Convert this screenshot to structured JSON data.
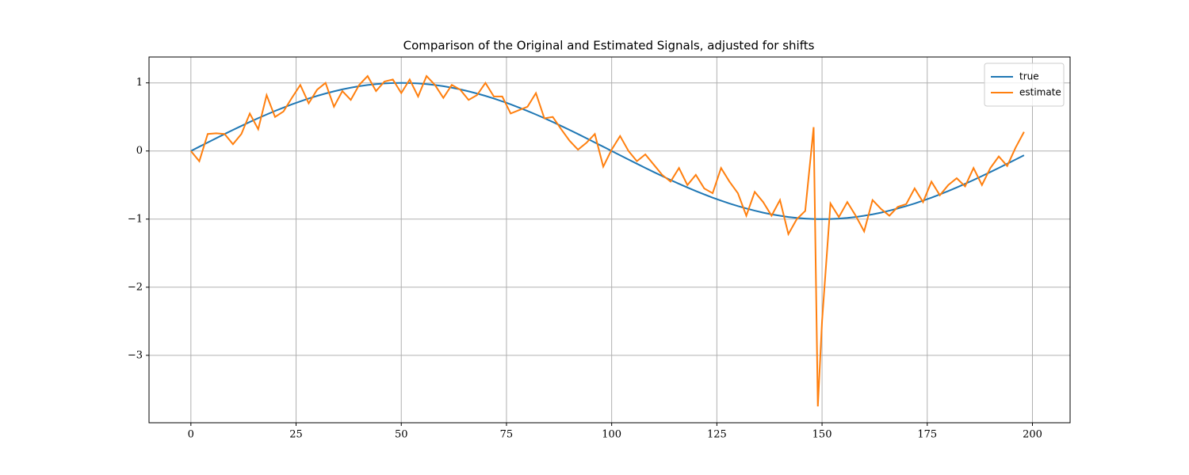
{
  "chart_data": {
    "type": "line",
    "title": "Comparison of the Original and Estimated Signals, adjusted for shifts",
    "x": [
      0,
      2,
      4,
      6,
      8,
      10,
      12,
      14,
      16,
      18,
      20,
      22,
      24,
      26,
      28,
      30,
      32,
      34,
      36,
      38,
      40,
      42,
      44,
      46,
      48,
      50,
      52,
      54,
      56,
      58,
      60,
      62,
      64,
      66,
      68,
      70,
      72,
      74,
      76,
      78,
      80,
      82,
      84,
      86,
      88,
      90,
      92,
      94,
      96,
      98,
      100,
      102,
      104,
      106,
      108,
      110,
      112,
      114,
      116,
      118,
      120,
      122,
      124,
      126,
      128,
      130,
      132,
      134,
      136,
      138,
      140,
      142,
      144,
      146,
      148,
      149,
      150,
      152,
      154,
      156,
      158,
      160,
      162,
      164,
      166,
      168,
      170,
      172,
      174,
      176,
      178,
      180,
      182,
      184,
      186,
      188,
      190,
      192,
      194,
      196,
      198
    ],
    "series": [
      {
        "name": "true",
        "color": "#1f77b4",
        "values": [
          0,
          0.063,
          0.125,
          0.187,
          0.249,
          0.309,
          0.368,
          0.426,
          0.482,
          0.536,
          0.588,
          0.637,
          0.685,
          0.729,
          0.771,
          0.809,
          0.844,
          0.876,
          0.905,
          0.93,
          0.951,
          0.969,
          0.982,
          0.992,
          0.998,
          1.0,
          0.998,
          0.992,
          0.982,
          0.969,
          0.951,
          0.93,
          0.905,
          0.876,
          0.844,
          0.809,
          0.771,
          0.729,
          0.685,
          0.637,
          0.588,
          0.536,
          0.482,
          0.426,
          0.368,
          0.309,
          0.249,
          0.187,
          0.125,
          0.063,
          0,
          -0.063,
          -0.125,
          -0.187,
          -0.249,
          -0.309,
          -0.368,
          -0.426,
          -0.482,
          -0.536,
          -0.588,
          -0.637,
          -0.685,
          -0.729,
          -0.771,
          -0.809,
          -0.844,
          -0.876,
          -0.905,
          -0.93,
          -0.951,
          -0.969,
          -0.982,
          -0.992,
          -0.998,
          -1.0,
          -1.0,
          -0.998,
          -0.992,
          -0.982,
          -0.969,
          -0.951,
          -0.93,
          -0.905,
          -0.876,
          -0.844,
          -0.809,
          -0.771,
          -0.729,
          -0.685,
          -0.637,
          -0.588,
          -0.536,
          -0.482,
          -0.426,
          -0.368,
          -0.309,
          -0.249,
          -0.187,
          -0.125,
          -0.063
        ]
      },
      {
        "name": "estimate",
        "color": "#ff7f0e",
        "values": [
          0,
          -0.15,
          0.25,
          0.26,
          0.25,
          0.1,
          0.25,
          0.55,
          0.32,
          0.82,
          0.5,
          0.58,
          0.78,
          0.97,
          0.7,
          0.9,
          1.0,
          0.65,
          0.88,
          0.75,
          0.97,
          1.1,
          0.88,
          1.02,
          1.05,
          0.85,
          1.05,
          0.8,
          1.1,
          0.97,
          0.78,
          0.97,
          0.9,
          0.75,
          0.82,
          1.0,
          0.8,
          0.8,
          0.55,
          0.6,
          0.65,
          0.85,
          0.48,
          0.5,
          0.32,
          0.15,
          0.02,
          0.12,
          0.25,
          -0.23,
          0.02,
          0.22,
          0.0,
          -0.15,
          -0.05,
          -0.2,
          -0.35,
          -0.45,
          -0.25,
          -0.5,
          -0.35,
          -0.55,
          -0.62,
          -0.25,
          -0.45,
          -0.62,
          -0.95,
          -0.6,
          -0.75,
          -0.95,
          -0.72,
          -1.22,
          -1.0,
          -0.88,
          0.35,
          -3.75,
          -2.5,
          -0.77,
          -0.97,
          -0.75,
          -0.95,
          -1.18,
          -0.72,
          -0.85,
          -0.95,
          -0.82,
          -0.78,
          -0.55,
          -0.75,
          -0.45,
          -0.65,
          -0.5,
          -0.4,
          -0.52,
          -0.25,
          -0.5,
          -0.25,
          -0.08,
          -0.22,
          0.05,
          0.28
        ]
      }
    ],
    "xlim": [
      -9.95,
      208.95
    ],
    "xticks": [
      0,
      25,
      50,
      75,
      100,
      125,
      150,
      175,
      200
    ],
    "ylim": [
      -3.99,
      1.38
    ],
    "yticks": [
      {
        "value": -3,
        "label": "−3"
      },
      {
        "value": -2,
        "label": "−2"
      },
      {
        "value": -1,
        "label": "−1"
      },
      0,
      1
    ],
    "grid": true,
    "legend": "upper right"
  }
}
